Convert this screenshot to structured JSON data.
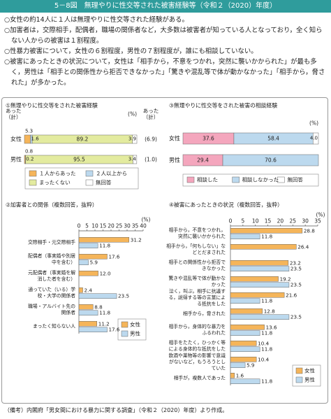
{
  "header": {
    "title": "5－8図　無理やりに性交等された被害経験等（令和２（2020）年度）"
  },
  "notes": [
    "○女性の約14人に１人は無理やりに性交等された経験がある。",
    "○加害者は，交際相手，配偶者，職場の関係者など，大多数は被害者が知っている人となっており，全く知らない人からの被害は１割程度。",
    "○性暴力被害について，女性の６割程度，男性の７割程度が，誰にも相談していない。",
    "○被害にあったときの状況について，女性は「相手から，不意をつかれ，突然に襲いかかられた」が最も多く，男性は「相手との関係性から拒否できなかった」「驚きや混乱等で体が動かなかった」「相手から，脅された」が多かった。"
  ],
  "chart_data": [
    {
      "type": "bar",
      "orientation": "horizontal",
      "stacked": true,
      "title": "①無理やりに性交等をされた被害経験",
      "unit": "(%)",
      "total_label": "あった（計）",
      "categories": [
        "女性",
        "男性"
      ],
      "series": [
        {
          "name": "１人からあった",
          "color": "#f5b55a",
          "values": [
            5.3,
            0.8
          ]
        },
        {
          "name": "２人以上から",
          "color": "#bcd9ee",
          "values": [
            1.6,
            0.2
          ]
        },
        {
          "name": "まったくない",
          "color": "#e3eb9f",
          "values": [
            89.2,
            95.5
          ]
        },
        {
          "name": "無回答",
          "color": "#ffffff",
          "values": [
            3.9,
            3.4
          ]
        }
      ],
      "totals": {
        "values": [
          6.9,
          1.0
        ],
        "value_labels": [
          "(6.9)",
          "(1.0)"
        ]
      },
      "xlim": [
        0,
        100
      ],
      "legend": "bottom"
    },
    {
      "type": "bar",
      "orientation": "horizontal",
      "stacked": false,
      "title": "②加害者との関係（複数回答，抜粋）",
      "unit": "(%)",
      "categories": [
        "交際相手・元交際相手",
        "配偶者（事実婚や別居中を含む）",
        "元配偶者（事実婚を解消した者を含む）",
        "通っていた（いる）学校・大学の関係者",
        "職場・アルバイト先の関係者",
        "まったく知らない人"
      ],
      "series": [
        {
          "name": "女性",
          "color": "#f5b55a",
          "values": [
            31.2,
            17.6,
            12.0,
            2.4,
            8.8,
            11.2
          ],
          "value_labels": [
            "31.2",
            "17.6",
            "12.0",
            "2.4",
            "8.8",
            "11.2"
          ]
        },
        {
          "name": "男性",
          "color": "#bcd9ee",
          "values": [
            11.8,
            5.9,
            null,
            23.5,
            11.8,
            17.6
          ]
        }
      ],
      "xlim": [
        0,
        40
      ],
      "xticks": [
        0,
        5,
        10,
        15,
        20,
        25,
        30,
        35,
        40
      ],
      "legend": "lower right"
    },
    {
      "type": "bar",
      "orientation": "horizontal",
      "stacked": true,
      "title": "③無理やりに性交等をされた被害の相談経験",
      "unit": "(%)",
      "categories": [
        "女性",
        "男性"
      ],
      "series": [
        {
          "name": "相談した",
          "color": "#f4a6bd",
          "values": [
            37.6,
            29.4
          ]
        },
        {
          "name": "相談しなかった",
          "color": "#bcd9ee",
          "values": [
            58.4,
            70.6
          ]
        },
        {
          "name": "無回答",
          "color": "#ffffff",
          "values": [
            4.0,
            null
          ],
          "value_labels": [
            "4.0",
            null
          ]
        }
      ],
      "xlim": [
        0,
        100
      ],
      "legend": "bottom"
    },
    {
      "type": "bar",
      "orientation": "horizontal",
      "stacked": false,
      "title": "④被害にあったときの状況（複数回答，抜粋）",
      "unit": "(%)",
      "categories": [
        "相手から，不意をつかれ，突然に襲いかかられた",
        "相手から，「何もしない」などとだまされた",
        "相手との関係性から拒否できなかった",
        "驚きや混乱等で体が動かなかった",
        "泣く，叫ぶ，相手に抗議する，説得する等の言葉による抵抗をした",
        "相手から，脅された",
        "相手から，身体的な暴力をふるわれた",
        "相手をたたく，ひっかく等による身体的な抵抗をした",
        "飲酒や薬物等の影響で意識がないなど，もうろうとしていた",
        "相手が，複数人であった"
      ],
      "series": [
        {
          "name": "女性",
          "color": "#f5b55a",
          "values": [
            28.8,
            26.4,
            23.2,
            19.2,
            21.6,
            12.8,
            13.6,
            10.4,
            10.4,
            1.6
          ]
        },
        {
          "name": "男性",
          "color": "#bcd9ee",
          "values": [
            11.8,
            null,
            23.5,
            23.5,
            11.8,
            23.5,
            11.8,
            11.8,
            5.9,
            11.8
          ]
        }
      ],
      "xlim": [
        0,
        35
      ],
      "xticks": [
        0,
        5,
        10,
        15,
        20,
        25,
        30,
        35
      ],
      "legend": "lower right"
    }
  ],
  "source": "（備考）内閣府「男女間における暴力に関する調査」（令和２（2020）年度）より作成。"
}
